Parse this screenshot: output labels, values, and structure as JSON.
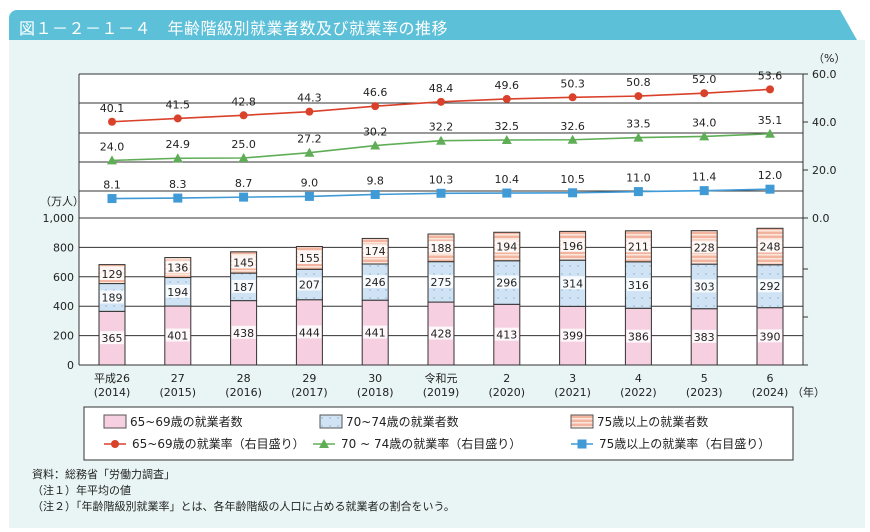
{
  "title": "図１－２－１－４　年齢階級別就業者数及び就業率の推移",
  "chart_data": {
    "type": "bar+line",
    "title": "図１－２－１－４　年齢階級別就業者数及び就業率の推移",
    "left_axis": {
      "unit": "（万人）",
      "ylim": [
        0,
        1000
      ],
      "ticks": [
        "0",
        "200",
        "400",
        "600",
        "800",
        "1,000"
      ]
    },
    "right_axis": {
      "unit": "（%）",
      "ylim": [
        0,
        60
      ],
      "ticks": [
        "0.0",
        "20.0",
        "40.0",
        "60.0"
      ]
    },
    "x_unit": "（年）",
    "categories": [
      {
        "era": "平成26",
        "year": "(2014)"
      },
      {
        "era": "27",
        "year": "(2015)"
      },
      {
        "era": "28",
        "year": "(2016)"
      },
      {
        "era": "29",
        "year": "(2017)"
      },
      {
        "era": "30",
        "year": "(2018)"
      },
      {
        "era": "令和元",
        "year": "(2019)"
      },
      {
        "era": "2",
        "year": "(2020)"
      },
      {
        "era": "3",
        "year": "(2021)"
      },
      {
        "era": "4",
        "year": "(2022)"
      },
      {
        "era": "5",
        "year": "(2023)"
      },
      {
        "era": "6",
        "year": "(2024)"
      }
    ],
    "bar_series": [
      {
        "name": "65~69歳の就業者数",
        "color": "#f6cfe0",
        "values": [
          365,
          401,
          438,
          444,
          441,
          428,
          413,
          399,
          386,
          383,
          390
        ]
      },
      {
        "name": "70~74歳の就業者数",
        "color": "#cfe3f5",
        "values": [
          189,
          194,
          187,
          207,
          246,
          275,
          296,
          314,
          316,
          303,
          292
        ]
      },
      {
        "name": "75歳以上の就業者数",
        "color": "#f2b49e",
        "values": [
          129,
          136,
          145,
          155,
          174,
          188,
          194,
          196,
          211,
          228,
          248
        ]
      }
    ],
    "line_series": [
      {
        "name": "65~69歳の就業率（右目盛り）",
        "color": "#d9412b",
        "marker": "circle",
        "values": [
          "40.1",
          "41.5",
          "42.8",
          "44.3",
          "46.6",
          "48.4",
          "49.6",
          "50.3",
          "50.8",
          "52.0",
          "53.6"
        ]
      },
      {
        "name": "70 ~ 74歳の就業率（右目盛り）",
        "color": "#5fae57",
        "marker": "triangle",
        "values": [
          "24.0",
          "24.9",
          "25.0",
          "27.2",
          "30.2",
          "32.2",
          "32.5",
          "32.6",
          "33.5",
          "34.0",
          "35.1"
        ]
      },
      {
        "name": "75歳以上の就業率（右目盛り）",
        "color": "#3f9ad6",
        "marker": "square",
        "values": [
          "8.1",
          "8.3",
          "8.7",
          "9.0",
          "9.8",
          "10.3",
          "10.4",
          "10.5",
          "11.0",
          "11.4",
          "12.0"
        ]
      }
    ],
    "legend_position": "bottom",
    "grid": true
  },
  "notes": [
    "資料：総務省「労働力調査」",
    "（注１）年平均の値",
    "（注２）「年齢階級別就業率」とは、各年齢階級の人口に占める就業者の割合をいう。"
  ]
}
